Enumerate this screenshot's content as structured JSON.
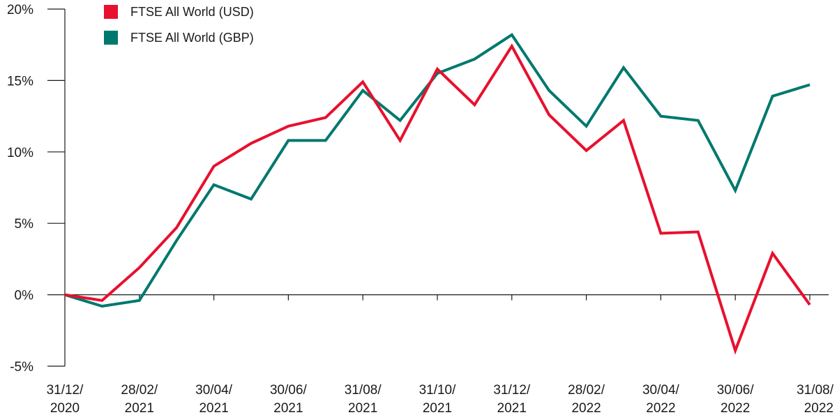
{
  "chart_data": {
    "type": "line",
    "title": "",
    "xlabel": "",
    "ylabel": "",
    "ylim": [
      -5,
      20
    ],
    "yticks": [
      -5,
      0,
      5,
      10,
      15,
      20
    ],
    "ytick_labels": [
      "-5%",
      "0%",
      "5%",
      "10%",
      "15%",
      "20%"
    ],
    "x": [
      "31/12/2020",
      "31/01/2021",
      "28/02/2021",
      "31/03/2021",
      "30/04/2021",
      "31/05/2021",
      "30/06/2021",
      "31/07/2021",
      "31/08/2021",
      "30/09/2021",
      "31/10/2021",
      "30/11/2021",
      "31/12/2021",
      "31/01/2022",
      "28/02/2022",
      "31/03/2022",
      "30/04/2022",
      "31/05/2022",
      "30/06/2022",
      "31/07/2022",
      "31/08/2022"
    ],
    "xtick_labels": [
      {
        "index": 0,
        "line1": "31/12/",
        "line2": "2020"
      },
      {
        "index": 2,
        "line1": "28/02/",
        "line2": "2021"
      },
      {
        "index": 4,
        "line1": "30/04/",
        "line2": "2021"
      },
      {
        "index": 6,
        "line1": "30/06/",
        "line2": "2021"
      },
      {
        "index": 8,
        "line1": "31/08/",
        "line2": "2021"
      },
      {
        "index": 10,
        "line1": "31/10/",
        "line2": "2021"
      },
      {
        "index": 12,
        "line1": "31/12/",
        "line2": "2021"
      },
      {
        "index": 14,
        "line1": "28/02/",
        "line2": "2022"
      },
      {
        "index": 16,
        "line1": "30/04/",
        "line2": "2022"
      },
      {
        "index": 18,
        "line1": "30/06/",
        "line2": "2022"
      },
      {
        "index": 20,
        "line1": "31/08/",
        "line2": "2022"
      }
    ],
    "legend_position": "top-left",
    "grid": false,
    "series": [
      {
        "name": "FTSE All World (USD)",
        "color": "#e8102e",
        "values": [
          0,
          -0.4,
          1.9,
          4.7,
          9.0,
          10.6,
          11.8,
          12.4,
          14.9,
          10.8,
          15.8,
          13.3,
          17.4,
          12.6,
          10.1,
          12.2,
          4.3,
          4.4,
          -3.9,
          2.9,
          -0.7
        ]
      },
      {
        "name": "FTSE All World (GBP)",
        "color": "#00786e",
        "values": [
          0,
          -0.8,
          -0.4,
          3.8,
          7.7,
          6.7,
          10.8,
          10.8,
          14.3,
          12.2,
          15.5,
          16.5,
          18.2,
          14.3,
          11.8,
          15.9,
          12.5,
          12.2,
          7.3,
          13.9,
          14.7
        ]
      }
    ]
  }
}
